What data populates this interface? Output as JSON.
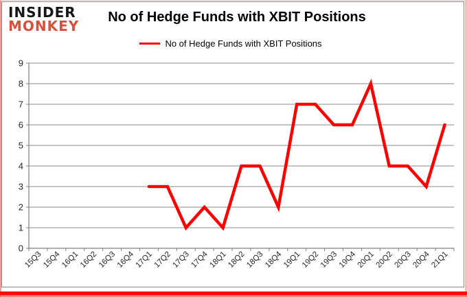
{
  "logo": {
    "line1": "INSIDER",
    "line2": "MONKEY"
  },
  "header": {
    "title": "No of Hedge Funds with XBIT Positions"
  },
  "legend": {
    "label": "No of Hedge Funds with XBIT Positions"
  },
  "chart_data": {
    "type": "line",
    "title": "No of Hedge Funds with XBIT Positions",
    "categories": [
      "15Q3",
      "15Q4",
      "16Q1",
      "16Q2",
      "16Q3",
      "16Q4",
      "17Q1",
      "17Q2",
      "17Q3",
      "17Q4",
      "18Q1",
      "18Q2",
      "18Q3",
      "18Q4",
      "19Q1",
      "19Q2",
      "19Q3",
      "19Q4",
      "20Q1",
      "20Q2",
      "20Q3",
      "20Q4",
      "21Q1"
    ],
    "series": [
      {
        "name": "No of Hedge Funds with XBIT Positions",
        "color": "#fe0000",
        "values": [
          null,
          null,
          null,
          null,
          null,
          null,
          3,
          3,
          1,
          2,
          1,
          4,
          4,
          2,
          7,
          7,
          6,
          6,
          8,
          4,
          4,
          3,
          6
        ]
      }
    ],
    "xlabel": "",
    "ylabel": "",
    "ylim": [
      0,
      9
    ],
    "yticks": [
      0,
      1,
      2,
      3,
      4,
      5,
      6,
      7,
      8,
      9
    ],
    "grid": true,
    "legend_position": "top",
    "colors": {
      "grid": "#898989",
      "axis": "#7f7f7f",
      "line": "#fe0000"
    }
  }
}
